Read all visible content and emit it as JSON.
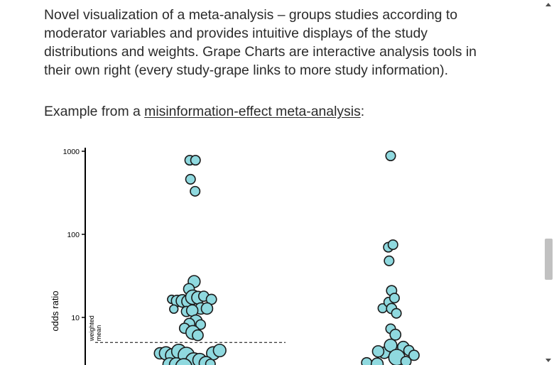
{
  "intro": {
    "text": "Novel visualization of a meta-analysis – groups studies according to moderator variables and provides intuitive displays of the study distributions and weights. Grape Charts are interactive analysis tools in their own right (every study-grape links to more study information)."
  },
  "example": {
    "prefix": "Example from a ",
    "link_text": "misinformation-effect meta-analysis",
    "suffix": ":"
  },
  "chart_data": {
    "type": "scatter",
    "ylabel": "odds ratio",
    "yscale": "log",
    "yticks": [
      "1000",
      "100",
      "10"
    ],
    "weighted_mean_label": [
      "weighted",
      "mean"
    ],
    "weighted_mean_value": 5.0,
    "colors": {
      "grape_fill": "#8fd9df",
      "grape_stroke": "#1a1a1a"
    },
    "groups": [
      {
        "points": [
          {
            "x": -0.18,
            "y": 780,
            "w": 0.8
          },
          {
            "x": 0.12,
            "y": 780,
            "w": 0.8
          },
          {
            "x": -0.14,
            "y": 460,
            "w": 0.8
          },
          {
            "x": 0.1,
            "y": 330,
            "w": 0.8
          },
          {
            "x": 0.05,
            "y": 27,
            "w": 1.0
          },
          {
            "x": -0.22,
            "y": 22,
            "w": 0.9
          },
          {
            "x": -1.12,
            "y": 16.5,
            "w": 0.7
          },
          {
            "x": -0.84,
            "y": 15.8,
            "w": 0.95
          },
          {
            "x": -0.56,
            "y": 15.8,
            "w": 1.05
          },
          {
            "x": -0.27,
            "y": 15.6,
            "w": 1.05
          },
          {
            "x": -0.02,
            "y": 17.5,
            "w": 1.2
          },
          {
            "x": 0.25,
            "y": 17.3,
            "w": 1.05
          },
          {
            "x": 0.55,
            "y": 18.0,
            "w": 0.85
          },
          {
            "x": 0.95,
            "y": 16.5,
            "w": 0.85
          },
          {
            "x": -1.01,
            "y": 12.6,
            "w": 0.7
          },
          {
            "x": 0.4,
            "y": 12.8,
            "w": 0.95
          },
          {
            "x": 0.72,
            "y": 12.8,
            "w": 0.95
          },
          {
            "x": -0.35,
            "y": 11.8,
            "w": 0.85
          },
          {
            "x": -0.05,
            "y": 12.1,
            "w": 0.95
          },
          {
            "x": 0.14,
            "y": 9.0,
            "w": 1.05
          },
          {
            "x": 0.39,
            "y": 8.2,
            "w": 0.8
          },
          {
            "x": -0.2,
            "y": 8.4,
            "w": 0.9
          },
          {
            "x": -0.45,
            "y": 7.4,
            "w": 0.85
          },
          {
            "x": -0.02,
            "y": 6.6,
            "w": 1.15
          },
          {
            "x": 0.24,
            "y": 6.1,
            "w": 0.9
          },
          {
            "x": -1.73,
            "y": 3.7,
            "w": 0.95
          },
          {
            "x": -1.42,
            "y": 3.7,
            "w": 1.1
          },
          {
            "x": -1.1,
            "y": 3.5,
            "w": 1.1
          },
          {
            "x": -0.75,
            "y": 3.9,
            "w": 1.2
          },
          {
            "x": -0.36,
            "y": 3.5,
            "w": 1.35
          },
          {
            "x": 0.03,
            "y": 3.0,
            "w": 1.35
          },
          {
            "x": 0.34,
            "y": 3.05,
            "w": 1.15
          },
          {
            "x": 1.04,
            "y": 3.7,
            "w": 1.1
          },
          {
            "x": 1.38,
            "y": 4.0,
            "w": 1.05
          },
          {
            "x": -1.22,
            "y": 2.7,
            "w": 1.15
          },
          {
            "x": -0.88,
            "y": 2.7,
            "w": 1.15
          },
          {
            "x": -0.49,
            "y": 2.55,
            "w": 1.35
          },
          {
            "x": 0.67,
            "y": 2.8,
            "w": 1.15
          },
          {
            "x": 0.9,
            "y": 2.75,
            "w": 0.8
          }
        ]
      },
      {
        "points": [
          {
            "x": 0.0,
            "y": 880,
            "w": 0.8
          },
          {
            "x": -0.12,
            "y": 70,
            "w": 0.8
          },
          {
            "x": 0.12,
            "y": 75,
            "w": 0.8
          },
          {
            "x": -0.08,
            "y": 48,
            "w": 0.8
          },
          {
            "x": 0.05,
            "y": 21,
            "w": 0.85
          },
          {
            "x": -0.42,
            "y": 12.9,
            "w": 0.75
          },
          {
            "x": -0.1,
            "y": 15.3,
            "w": 0.8
          },
          {
            "x": 0.2,
            "y": 17.1,
            "w": 0.8
          },
          {
            "x": 0.05,
            "y": 12.8,
            "w": 0.85
          },
          {
            "x": 0.3,
            "y": 11.2,
            "w": 0.8
          },
          {
            "x": 0.0,
            "y": 7.3,
            "w": 0.8
          },
          {
            "x": 0.25,
            "y": 6.2,
            "w": 0.9
          },
          {
            "x": -0.33,
            "y": 3.75,
            "w": 0.95
          },
          {
            "x": -0.65,
            "y": 3.9,
            "w": 0.95
          },
          {
            "x": 0.0,
            "y": 4.6,
            "w": 1.05
          },
          {
            "x": 0.66,
            "y": 4.4,
            "w": 0.95
          },
          {
            "x": 0.95,
            "y": 4.0,
            "w": 0.85
          },
          {
            "x": 1.22,
            "y": 3.5,
            "w": 0.85
          },
          {
            "x": -1.25,
            "y": 2.85,
            "w": 0.85
          },
          {
            "x": -0.7,
            "y": 2.75,
            "w": 1.0
          },
          {
            "x": 0.32,
            "y": 3.3,
            "w": 1.35
          },
          {
            "x": 0.8,
            "y": 2.95,
            "w": 0.85
          }
        ]
      }
    ]
  }
}
